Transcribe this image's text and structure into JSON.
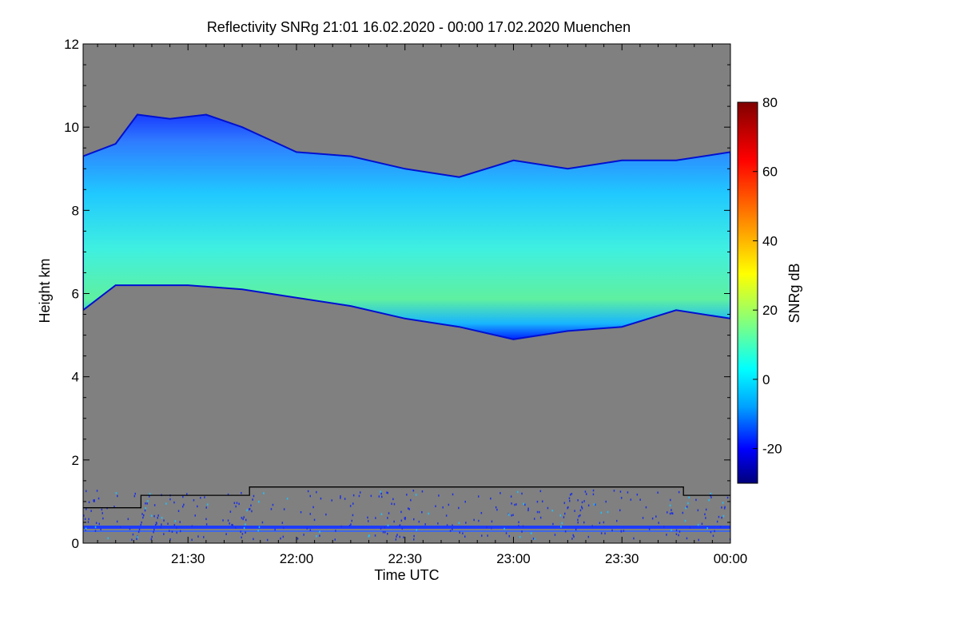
{
  "chart_data": {
    "type": "heatmap",
    "title": "Reflectivity SNRg   21:01 16.02.2020 - 00:00 17.02.2020 Muenchen",
    "xlabel": "Time UTC",
    "ylabel": "Height km",
    "colorbar_label": "SNRg dB",
    "x_range_minutes": [
      1261,
      1440
    ],
    "xlim": [
      "21:01",
      "00:00"
    ],
    "ylim": [
      0,
      12
    ],
    "x_ticks": [
      {
        "minutes": 1290,
        "label": "21:30"
      },
      {
        "minutes": 1320,
        "label": "22:00"
      },
      {
        "minutes": 1350,
        "label": "22:30"
      },
      {
        "minutes": 1380,
        "label": "23:00"
      },
      {
        "minutes": 1410,
        "label": "23:30"
      },
      {
        "minutes": 1440,
        "label": "00:00"
      }
    ],
    "y_ticks": [
      0,
      2,
      4,
      6,
      8,
      10,
      12
    ],
    "colorbar_range": [
      -30,
      80
    ],
    "colorbar_ticks": [
      -20,
      0,
      20,
      40,
      60,
      80
    ],
    "colormap": [
      "#00007a",
      "#0000ff",
      "#00a0ff",
      "#00ffff",
      "#80ff80",
      "#ffff00",
      "#ff8000",
      "#ff0000",
      "#800000"
    ],
    "background_color": "#808080",
    "cloud_layer": {
      "description_snr_dB_range": [
        -15,
        20
      ],
      "top_km": [
        {
          "t": "21:01",
          "km": 9.3
        },
        {
          "t": "21:10",
          "km": 9.6
        },
        {
          "t": "21:16",
          "km": 10.3
        },
        {
          "t": "21:25",
          "km": 10.2
        },
        {
          "t": "21:35",
          "km": 10.3
        },
        {
          "t": "21:45",
          "km": 10.0
        },
        {
          "t": "22:00",
          "km": 9.4
        },
        {
          "t": "22:15",
          "km": 9.3
        },
        {
          "t": "22:30",
          "km": 9.0
        },
        {
          "t": "22:45",
          "km": 8.8
        },
        {
          "t": "23:00",
          "km": 9.2
        },
        {
          "t": "23:15",
          "km": 9.0
        },
        {
          "t": "23:30",
          "km": 9.2
        },
        {
          "t": "23:45",
          "km": 9.2
        },
        {
          "t": "00:00",
          "km": 9.4
        }
      ],
      "base_km": [
        {
          "t": "21:01",
          "km": 5.6
        },
        {
          "t": "21:10",
          "km": 6.2
        },
        {
          "t": "21:30",
          "km": 6.2
        },
        {
          "t": "21:45",
          "km": 6.1
        },
        {
          "t": "22:00",
          "km": 5.9
        },
        {
          "t": "22:15",
          "km": 5.7
        },
        {
          "t": "22:30",
          "km": 5.4
        },
        {
          "t": "22:45",
          "km": 5.2
        },
        {
          "t": "23:00",
          "km": 4.9
        },
        {
          "t": "23:15",
          "km": 5.1
        },
        {
          "t": "23:30",
          "km": 5.2
        },
        {
          "t": "23:45",
          "km": 5.6
        },
        {
          "t": "00:00",
          "km": 5.4
        }
      ]
    },
    "boundary_line_km": [
      {
        "t": "21:01",
        "km": 0.85
      },
      {
        "t": "21:17",
        "km": 0.85
      },
      {
        "t": "21:17",
        "km": 1.15
      },
      {
        "t": "21:47",
        "km": 1.15
      },
      {
        "t": "21:47",
        "km": 1.35
      },
      {
        "t": "23:47",
        "km": 1.35
      },
      {
        "t": "23:47",
        "km": 1.15
      },
      {
        "t": "00:00",
        "km": 1.15
      }
    ]
  }
}
